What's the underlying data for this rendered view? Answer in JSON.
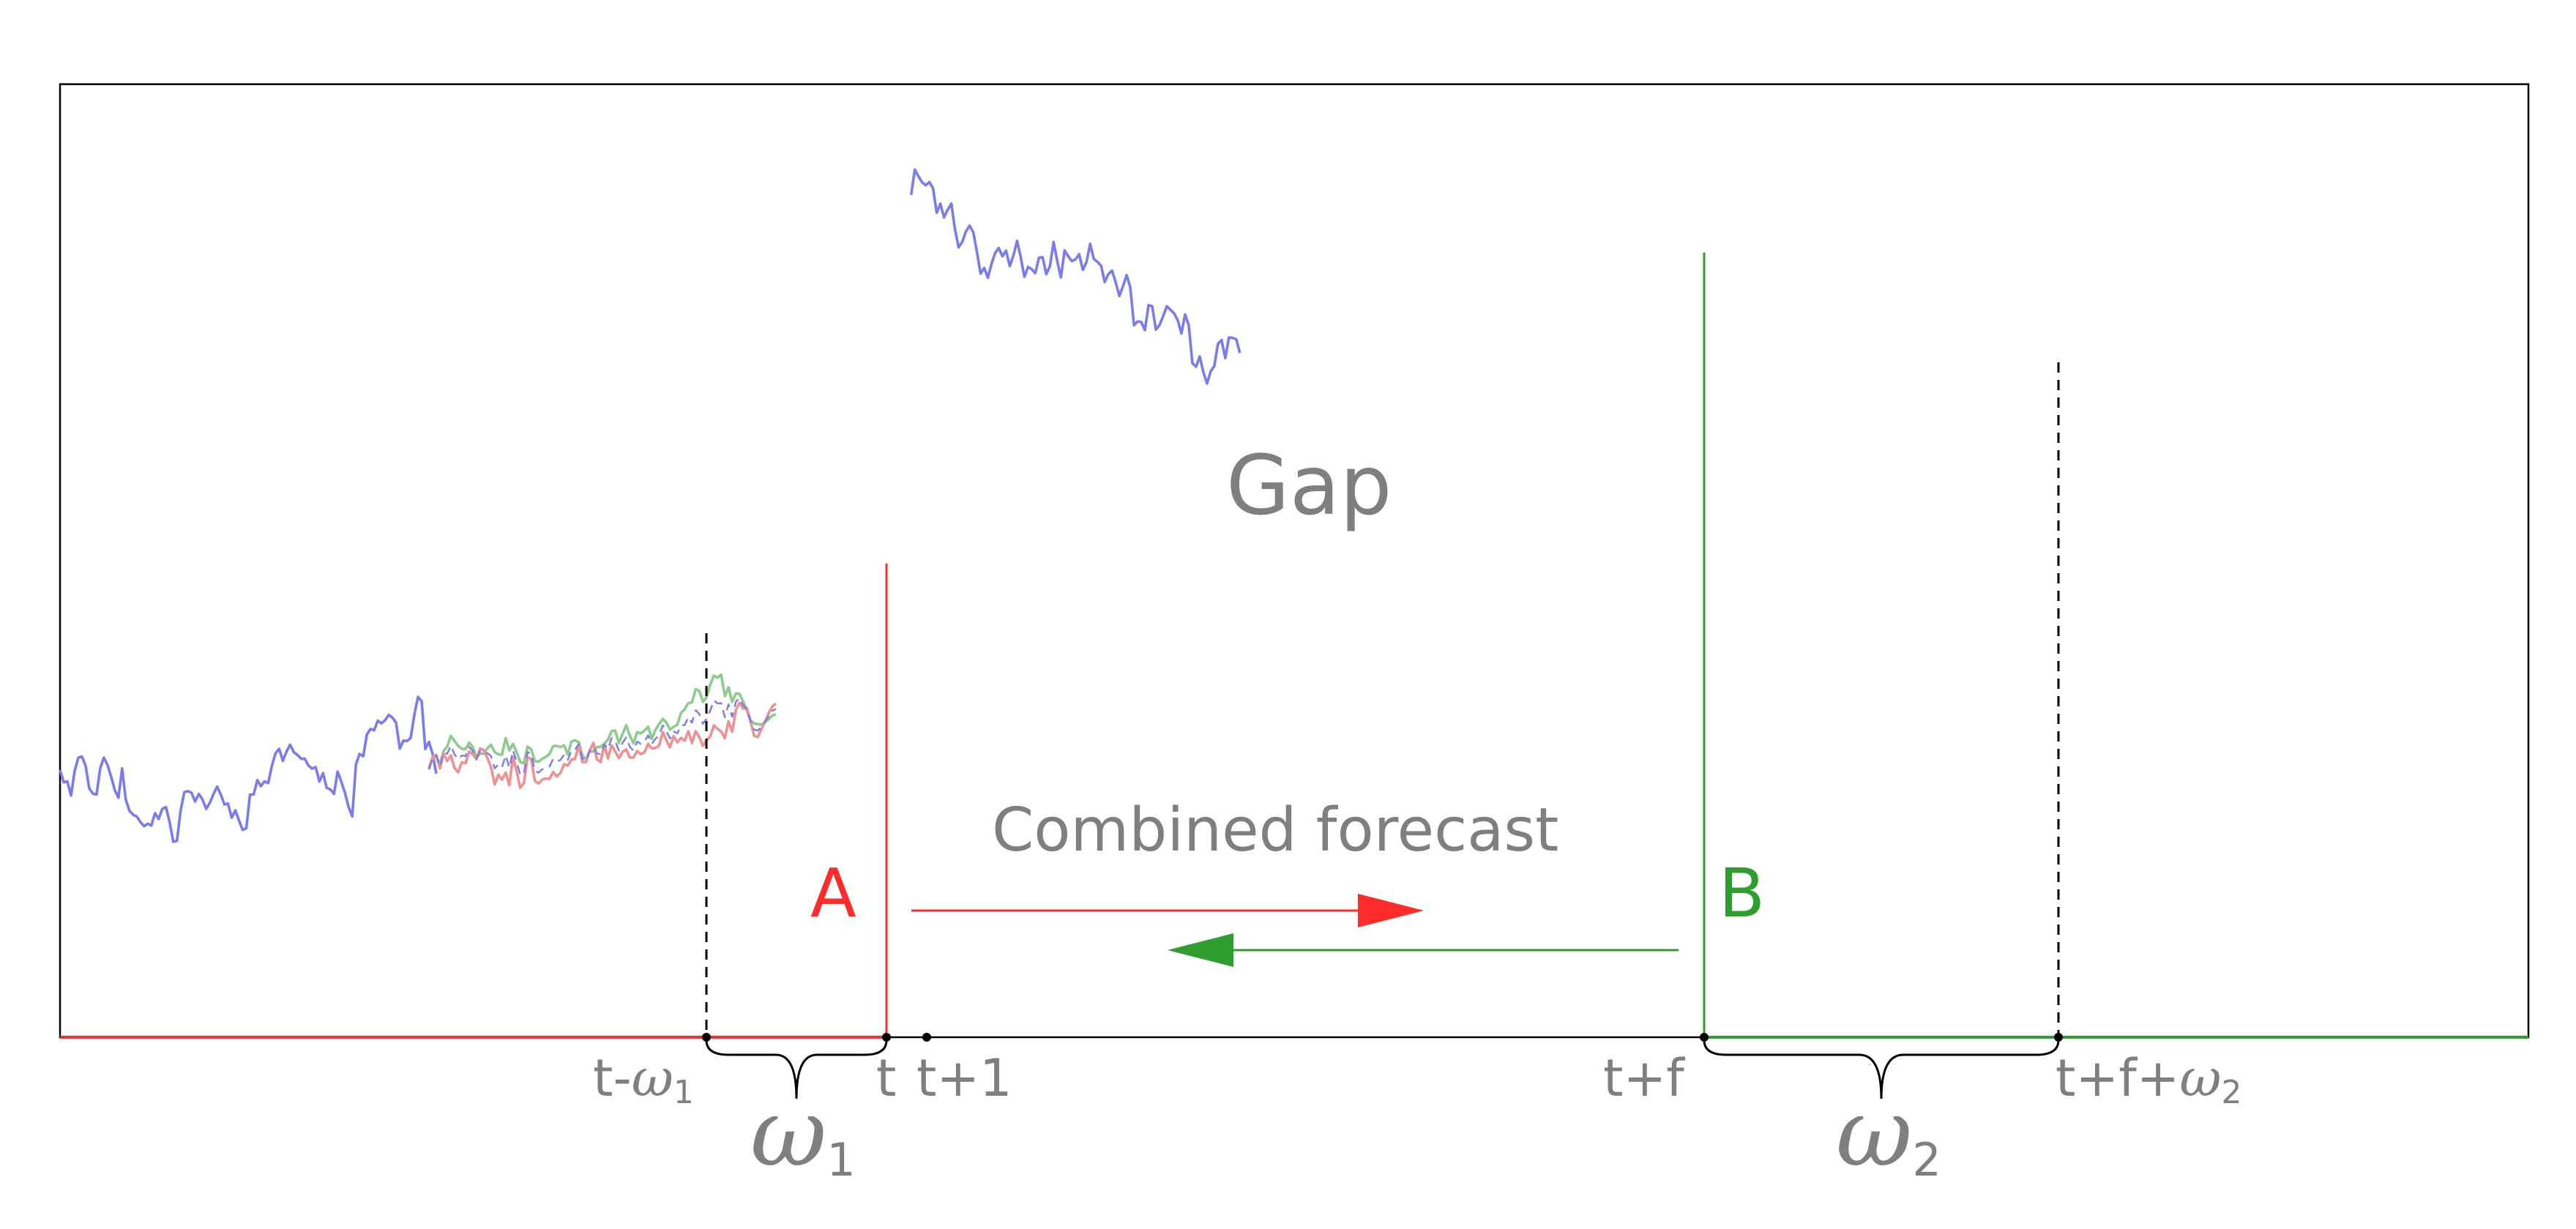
{
  "labels": {
    "gap": "Gap",
    "combined_forecast": "Combined forecast",
    "point_a": "A",
    "point_b": "B",
    "tick_t_minus_w1_base": "t-",
    "tick_t_minus_w1_symbol": "ω",
    "tick_t_minus_w1_sub": "1",
    "tick_t": "t",
    "tick_t_plus_1": "t+1",
    "tick_t_plus_f": "t+f",
    "tick_t_plus_f_plus_w2_base": "t+f+",
    "tick_t_plus_f_plus_w2_symbol": "ω",
    "tick_t_plus_f_plus_w2_sub": "2",
    "brace_w1_symbol": "ω",
    "brace_w1_sub": "1",
    "brace_w2_symbol": "ω",
    "brace_w2_sub": "2"
  },
  "colors": {
    "observed_series": "#7b7bf0",
    "forward_forecast": "#f09090",
    "backward_forecast": "#8ccc8c",
    "combined_forecast": "#7b7bf0",
    "marker_a": "#ff2a2a",
    "marker_b": "#2e9e2e",
    "arrow_forward": "#ff2a2a",
    "arrow_backward": "#2e9e2e",
    "text_gray": "#7f7f7f",
    "axis": "#000000"
  },
  "series": {
    "observed_left": [
      122.5,
      101.6,
      103.1,
      79.0,
      121.3,
      143.8,
      145.6,
      130.0,
      91.3,
      82.3,
      80.7,
      125.6,
      143.9,
      131.1,
      110.7,
      87.9,
      75.4,
      125.3,
      72.1,
      53.3,
      46.3,
      43.1,
      33.9,
      26.6,
      30.8,
      27.9,
      48.7,
      38.9,
      56.3,
      59.2,
      33.8,
      0.0,
      1.8,
      52.7,
      84.6,
      86.5,
      83.7,
      68.8,
      81.8,
      72.4,
      56.1,
      66.5,
      81.4,
      94.3,
      80.7,
      63.7,
      65.3,
      41.1,
      53.6,
      36.4,
      20.2,
      23.1,
      80.4,
      80.7,
      105.3,
      94.9,
      103.1,
      100.2,
      129.8,
      151.3,
      158.7,
      138.1,
      154.2,
      165.8,
      152.9,
      148.3,
      141.7,
      141.9,
      130.4,
      125.0,
      127.4,
      102.9,
      117.4,
      92.0,
      89.4,
      81.9,
      119.9,
      102.7,
      83.8,
      59.4,
      43.3,
      132.0,
      150.0,
      146.0,
      183.4,
      192.8,
      190.5,
      206.9,
      202.1,
      207.6,
      216.6,
      212.1,
      203.3,
      159.0,
      172.6,
      172.1,
      177.2,
      216.8,
      247.4,
      240.0,
      158.5,
      170.6,
      150.0,
      116.2
    ],
    "observed_right": [
      1104.5,
      1147.9,
      1136.2,
      1126.2,
      1121.1,
      1126.6,
      1115.9,
      1074.3,
      1089.6,
      1066.3,
      1079.2,
      1089.8,
      1046.4,
      1015.1,
      1024.4,
      1042.3,
      1052.1,
      1041.1,
      1007.8,
      970.3,
      980.0,
      963.1,
      987.1,
      1005.2,
      1014.0,
      999.9,
      1009.5,
      983.1,
      1000.9,
      1026.3,
      998.2,
      964.9,
      981.7,
      977.8,
      971.1,
      997.3,
      998.3,
      969.2,
      983.0,
      1024.3,
      991.5,
      963.8,
      1009.8,
      1000.0,
      991.5,
      994.5,
      1003.5,
      976.7,
      989.8,
      1021.0,
      995.4,
      990.3,
      983.8,
      956.0,
      969.4,
      975.5,
      955.2,
      932.1,
      948.8,
      967.8,
      946.4,
      882.1,
      888.5,
      887.6,
      873.8,
      916.3,
      914.5,
      874.7,
      882.3,
      897.9,
      914.6,
      908.4,
      902.3,
      890.4,
      868.1,
      900.5,
      882.3,
      817.3,
      811.4,
      828.7,
      801.8,
      782.5,
      803.2,
      812.1,
      850.4,
      856.8,
      826.0,
      861.3,
      860.4,
      858.3,
      834.8
    ],
    "forward_forecast": [
      123.5,
      145.0,
      148.5,
      125.2,
      150.4,
      137.9,
      147.8,
      126.0,
      118.8,
      135.9,
      134.1,
      154.2,
      149.8,
      140.8,
      159.3,
      156.5,
      143.1,
      127.1,
      98.0,
      114.6,
      106.0,
      118.2,
      96.5,
      144.8,
      120.2,
      92.2,
      100.4,
      144.4,
      141.5,
      103.8,
      99.5,
      106.0,
      108.1,
      107.3,
      119.3,
      111.5,
      117.5,
      132.3,
      130.2,
      140.3,
      141.6,
      164.6,
      136.1,
      136.2,
      156.3,
      169.0,
      140.7,
      136.3,
      165.7,
      142.4,
      164.8,
      153.9,
      142.8,
      153.8,
      157.5,
      143.8,
      143.8,
      155.0,
      149.8,
      152.8,
      167.1,
      159.4,
      160.2,
      164.2,
      187.3,
      173.6,
      161.3,
      180.6,
      169.9,
      177.2,
      172.6,
      188.8,
      168.6,
      188.8,
      178.8,
      163.9,
      173.5,
      179.7,
      198.8,
      192.8,
      188.2,
      176.9,
      205.8,
      187.9,
      224.8,
      237.5,
      227.8,
      228.6,
      207.0,
      181.4,
      178.7,
      192.2,
      205.1,
      219.5,
      231.3,
      236.2
    ],
    "combined_forecast": [
      124.7,
      144.0,
      147.2,
      128.7,
      152.8,
      150.2,
      164.3,
      149.1,
      141.3,
      147.4,
      146.2,
      161.7,
      155.5,
      142.3,
      155.1,
      153.3,
      151.4,
      146.5,
      125.4,
      132.0,
      127.4,
      147.6,
      126.2,
      156.1,
      136.5,
      114.2,
      117.2,
      153.5,
      149.6,
      120.7,
      118.1,
      123.8,
      126.5,
      128.5,
      141.4,
      137.6,
      139.6,
      148.6,
      139.7,
      155.7,
      157.5,
      167.2,
      141.8,
      138.2,
      155.7,
      161.5,
      151.1,
      149.3,
      166.4,
      158.4,
      177.0,
      171.8,
      155.7,
      169.0,
      178.3,
      162.3,
      155.9,
      171.1,
      167.4,
      171.4,
      181.7,
      167.5,
      175.7,
      182.5,
      198.7,
      188.5,
      176.4,
      188.4,
      185.0,
      198.6,
      199.4,
      212.9,
      203.4,
      224.6,
      218.2,
      201.4,
      210.1,
      224.0,
      241.3,
      236.4,
      236.8,
      212.8,
      234.7,
      213.5,
      239.1,
      245.2,
      233.8,
      226.6,
      207.0,
      191.9,
      189.8,
      196.1,
      204.7,
      214.4,
      223.5,
      226.9
    ],
    "backward_forecast": [
      125.9,
      142.9,
      146.0,
      132.1,
      155.1,
      162.5,
      180.7,
      172.2,
      163.7,
      158.9,
      158.4,
      169.3,
      161.3,
      143.7,
      150.9,
      150.2,
      159.7,
      165.8,
      152.8,
      149.4,
      148.7,
      177.0,
      155.9,
      167.3,
      152.8,
      136.1,
      134.0,
      162.6,
      157.8,
      137.6,
      136.8,
      141.7,
      144.9,
      149.7,
      163.4,
      163.8,
      161.6,
      164.8,
      149.2,
      171.0,
      173.4,
      169.9,
      147.4,
      140.2,
      155.0,
      154.0,
      161.6,
      162.3,
      167.2,
      174.4,
      189.1,
      189.8,
      168.6,
      184.2,
      199.1,
      180.9,
      168.1,
      187.1,
      185.0,
      190.0,
      196.4,
      175.7,
      191.2,
      200.8,
      210.0,
      203.4,
      191.6,
      196.1,
      200.2,
      220.0,
      226.2,
      236.9,
      238.3,
      260.4,
      257.6,
      238.9,
      246.8,
      268.2,
      283.8,
      280.0,
      285.5,
      248.8,
      263.6,
      239.0,
      253.3,
      252.9,
      239.8,
      224.6,
      207.1,
      202.4,
      200.9,
      200.0,
      204.3,
      209.3,
      215.7,
      217.5
    ]
  }
}
